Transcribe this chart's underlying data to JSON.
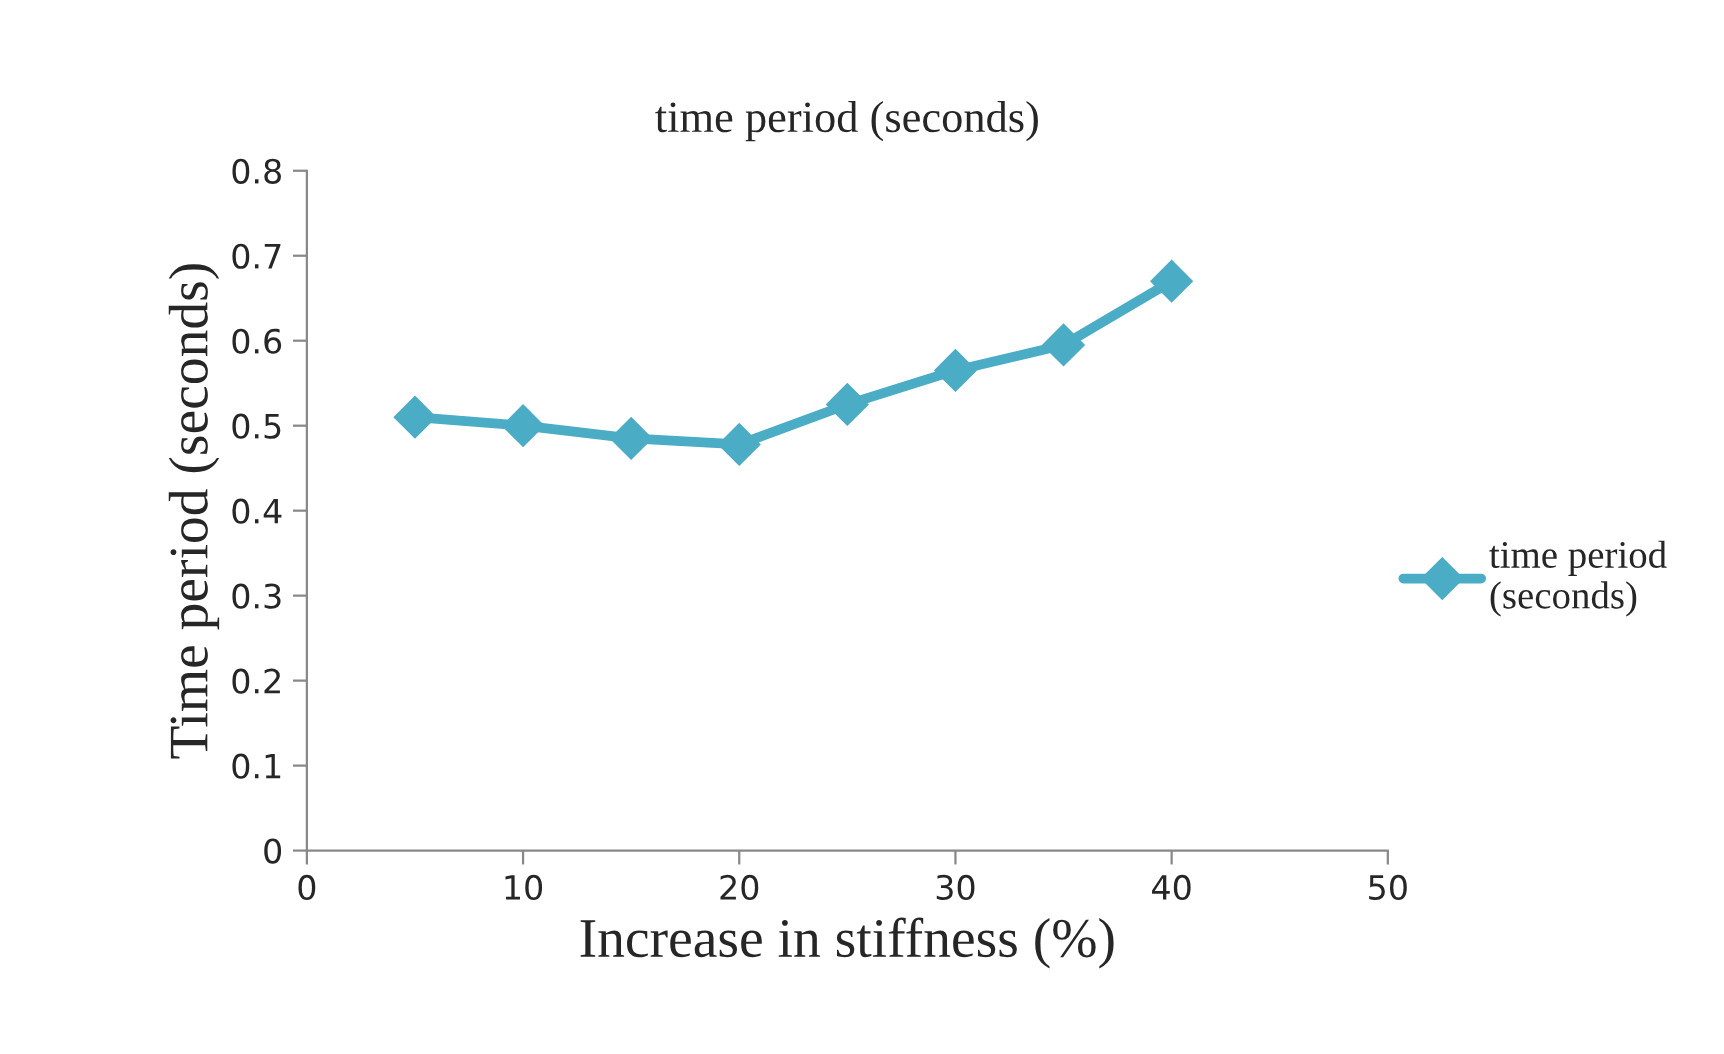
{
  "chart_data": {
    "type": "line",
    "title": "time period (seconds)",
    "xlabel": "Increase in stiffness (%)",
    "ylabel": "Time period (seconds)",
    "x": [
      5,
      10,
      15,
      20,
      25,
      30,
      35,
      40
    ],
    "series": [
      {
        "name": "time period\n(seconds)",
        "color": "#4bacc6",
        "values": [
          0.51,
          0.5,
          0.485,
          0.478,
          0.525,
          0.565,
          0.595,
          0.67
        ]
      }
    ],
    "xlim": [
      0,
      50
    ],
    "xticks": [
      0,
      10,
      20,
      30,
      40,
      50
    ],
    "ylim": [
      0,
      0.8
    ],
    "yticks": [
      0,
      0.1,
      0.2,
      0.3,
      0.4,
      0.5,
      0.6,
      0.7,
      0.8
    ],
    "marker": "diamond",
    "line_style": "solid",
    "grid": false,
    "legend": "right"
  }
}
